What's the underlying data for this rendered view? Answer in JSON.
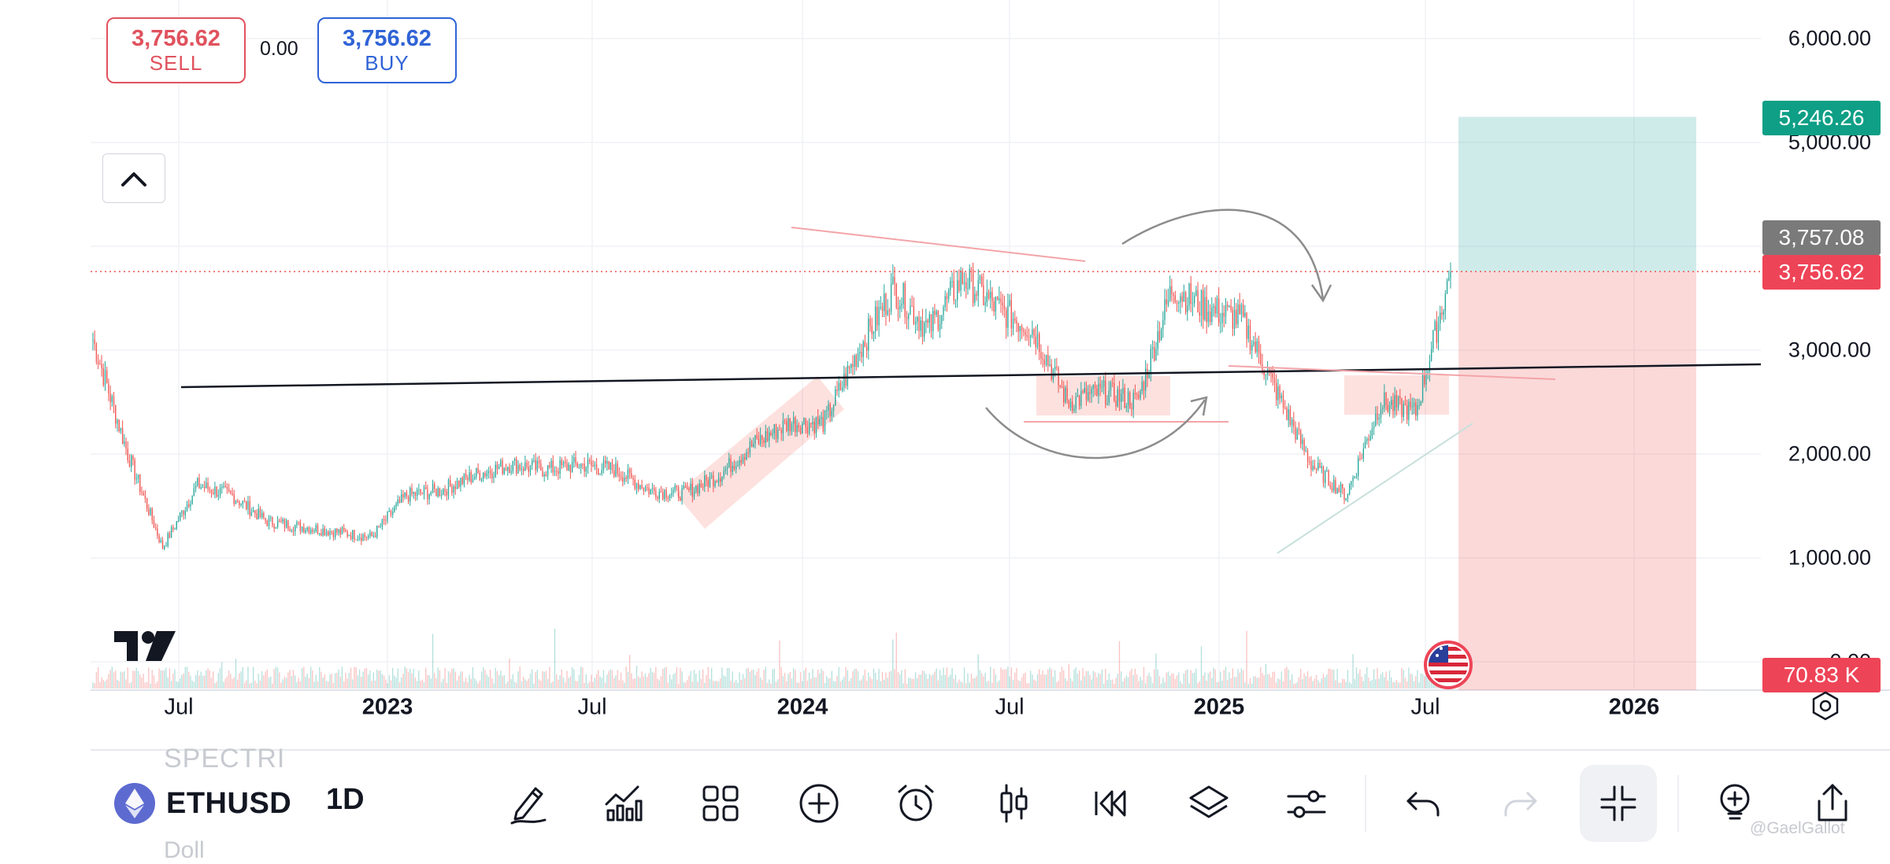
{
  "order_panel": {
    "sell_price": "3,756.62",
    "sell_label": "SELL",
    "spread": "0.00",
    "buy_price": "3,756.62",
    "buy_label": "BUY"
  },
  "price_axis": {
    "ticks": [
      "6,000.00",
      "5,000.00",
      "3,000.00",
      "2,000.00",
      "1,000.00",
      "0.00"
    ],
    "take_profit_label": "5,246.26",
    "last_price_label": "3,757.08",
    "current_price_label": "3,756.62",
    "volume_label": "70.83 K"
  },
  "time_axis": {
    "ticks": [
      {
        "label": "Jul",
        "year": false
      },
      {
        "label": "2023",
        "year": true
      },
      {
        "label": "Jul",
        "year": false
      },
      {
        "label": "2024",
        "year": true
      },
      {
        "label": "Jul",
        "year": false
      },
      {
        "label": "2025",
        "year": true
      },
      {
        "label": "Jul",
        "year": false
      },
      {
        "label": "2026",
        "year": true
      }
    ]
  },
  "toolbar": {
    "symbol": "ETHUSD",
    "symbol_desc_top": "SPECTRI",
    "symbol_desc_bottom": "Doll",
    "interval": "1D",
    "tools": [
      "pen-icon",
      "indicators-icon",
      "layout-grid-icon",
      "plus-circle-icon",
      "alarm-icon",
      "candles-icon",
      "replay-icon",
      "layers-icon",
      "settings-sliders-icon",
      "undo-icon",
      "redo-icon",
      "fullscreen-exit-icon",
      "idea-icon",
      "share-icon"
    ]
  },
  "colors": {
    "up": "#26a69a",
    "down": "#ef5350",
    "sell": "#e0525e",
    "buy": "#2f63d6",
    "take_profit": "#0e9f86",
    "stop": "#ee4457",
    "last_price": "#7a7a7a"
  },
  "watermark": "@GaelGallot",
  "chart_data": {
    "type": "candlestick",
    "symbol": "ETHUSD",
    "interval": "1D",
    "x": [
      "2022-04",
      "2022-05",
      "2022-06",
      "2022-07",
      "2022-08",
      "2022-09",
      "2022-10",
      "2022-11",
      "2022-12",
      "2023-01",
      "2023-02",
      "2023-03",
      "2023-04",
      "2023-05",
      "2023-06",
      "2023-07",
      "2023-08",
      "2023-09",
      "2023-10",
      "2023-11",
      "2023-12",
      "2024-01",
      "2024-02",
      "2024-03",
      "2024-04",
      "2024-05",
      "2024-06",
      "2024-07",
      "2024-08",
      "2024-09",
      "2024-10",
      "2024-11",
      "2024-12",
      "2025-01",
      "2025-02",
      "2025-03",
      "2025-04",
      "2025-05",
      "2025-06",
      "2025-07"
    ],
    "close": [
      3100,
      2000,
      1100,
      1700,
      1600,
      1350,
      1300,
      1250,
      1200,
      1600,
      1650,
      1800,
      1900,
      1850,
      1900,
      1850,
      1650,
      1620,
      1800,
      2100,
      2300,
      2300,
      3000,
      3600,
      3200,
      3700,
      3400,
      3200,
      2500,
      2600,
      2500,
      3600,
      3400,
      3300,
      2600,
      1900,
      1600,
      2500,
      2400,
      3756.62
    ],
    "ylim": [
      0,
      6000
    ],
    "x_ticks": [
      "Jul",
      "2023",
      "Jul",
      "2024",
      "Jul",
      "2025",
      "Jul",
      "2026"
    ],
    "position": {
      "entry": 3756.62,
      "take_profit": 5246.26,
      "stop": 0
    },
    "last_price": 3757.08,
    "volume_last": "70.83 K"
  }
}
